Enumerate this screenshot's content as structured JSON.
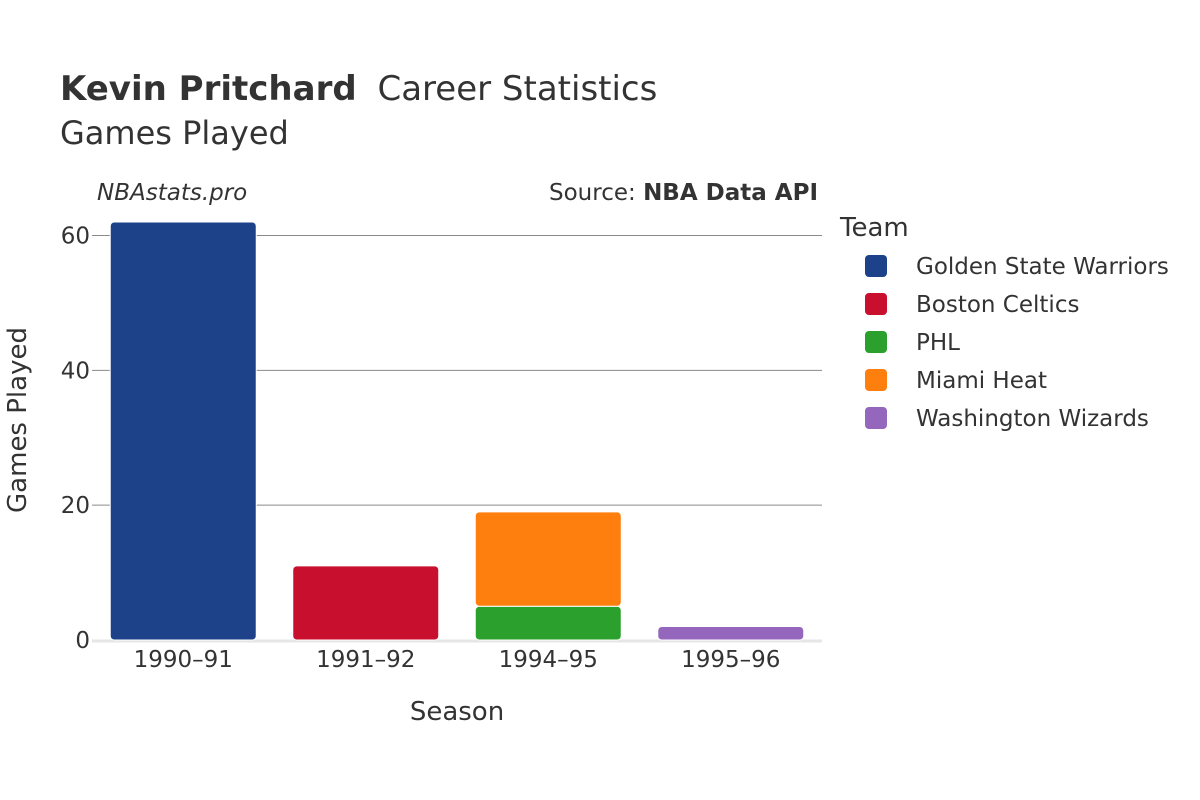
{
  "header": {
    "title_name": "Kevin Pritchard",
    "title_rest": "Career Statistics",
    "subtitle": "Games Played",
    "site": "NBAstats.pro",
    "source_label": "Source: ",
    "source_name": "NBA Data API"
  },
  "legend": {
    "title": "Team",
    "items": [
      {
        "label": "Golden State Warriors",
        "color": "#1d428a"
      },
      {
        "label": "Boston Celtics",
        "color": "#c8102e"
      },
      {
        "label": "PHL",
        "color": "#2ca02c"
      },
      {
        "label": "Miami Heat",
        "color": "#ff7f0e"
      },
      {
        "label": "Washington Wizards",
        "color": "#9467bd"
      }
    ]
  },
  "chart_data": {
    "type": "bar",
    "stacked": true,
    "xlabel": "Season",
    "ylabel": "Games Played",
    "categories": [
      "1990–91",
      "1991–92",
      "1994–95",
      "1995–96"
    ],
    "ylim": [
      0,
      62
    ],
    "yticks": [
      0,
      20,
      40,
      60
    ],
    "grid": true,
    "legend_position": "right",
    "series": [
      {
        "name": "Golden State Warriors",
        "color": "#1d428a",
        "values": [
          62,
          0,
          0,
          0
        ]
      },
      {
        "name": "Boston Celtics",
        "color": "#c8102e",
        "values": [
          0,
          11,
          0,
          0
        ]
      },
      {
        "name": "PHL",
        "color": "#2ca02c",
        "values": [
          0,
          0,
          5,
          0
        ]
      },
      {
        "name": "Miami Heat",
        "color": "#ff7f0e",
        "values": [
          0,
          0,
          14,
          0
        ]
      },
      {
        "name": "Washington Wizards",
        "color": "#9467bd",
        "values": [
          0,
          0,
          0,
          2
        ]
      }
    ]
  }
}
